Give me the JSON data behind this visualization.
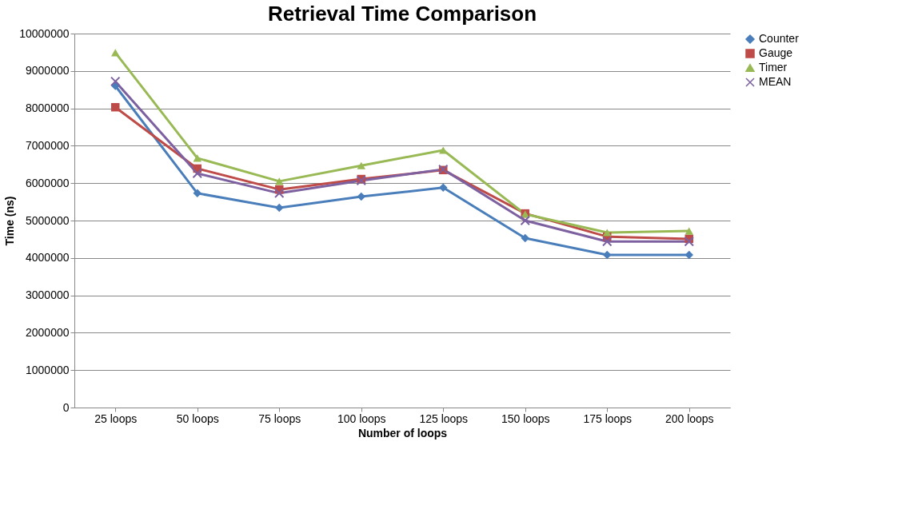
{
  "chart_data": {
    "type": "line",
    "title": "Retrieval Time Comparison",
    "xlabel": "Number of loops",
    "ylabel": "Time (ns)",
    "categories": [
      "25 loops",
      "50 loops",
      "75 loops",
      "100 loops",
      "125 loops",
      "150 loops",
      "175  loops",
      "200 loops"
    ],
    "series": [
      {
        "name": "Counter",
        "color": "#4a7ebb",
        "marker": "diamond",
        "values": [
          8600000,
          5730000,
          5340000,
          5640000,
          5880000,
          4530000,
          4080000,
          4080000
        ]
      },
      {
        "name": "Gauge",
        "color": "#be4b48",
        "marker": "square",
        "values": [
          8030000,
          6390000,
          5830000,
          6110000,
          6350000,
          5190000,
          4570000,
          4510000
        ]
      },
      {
        "name": "Timer",
        "color": "#98b954",
        "marker": "triangle",
        "values": [
          9490000,
          6670000,
          6050000,
          6470000,
          6880000,
          5170000,
          4680000,
          4720000
        ]
      },
      {
        "name": "MEAN",
        "color": "#7d60a0",
        "marker": "cross",
        "values": [
          8720000,
          6260000,
          5730000,
          6070000,
          6370000,
          5000000,
          4440000,
          4440000
        ]
      }
    ],
    "ylim": [
      0,
      10000000
    ],
    "yticks": [
      0,
      1000000,
      2000000,
      3000000,
      4000000,
      5000000,
      6000000,
      7000000,
      8000000,
      9000000,
      10000000
    ],
    "grid": "y",
    "legend": "right",
    "line_style": "solid"
  }
}
